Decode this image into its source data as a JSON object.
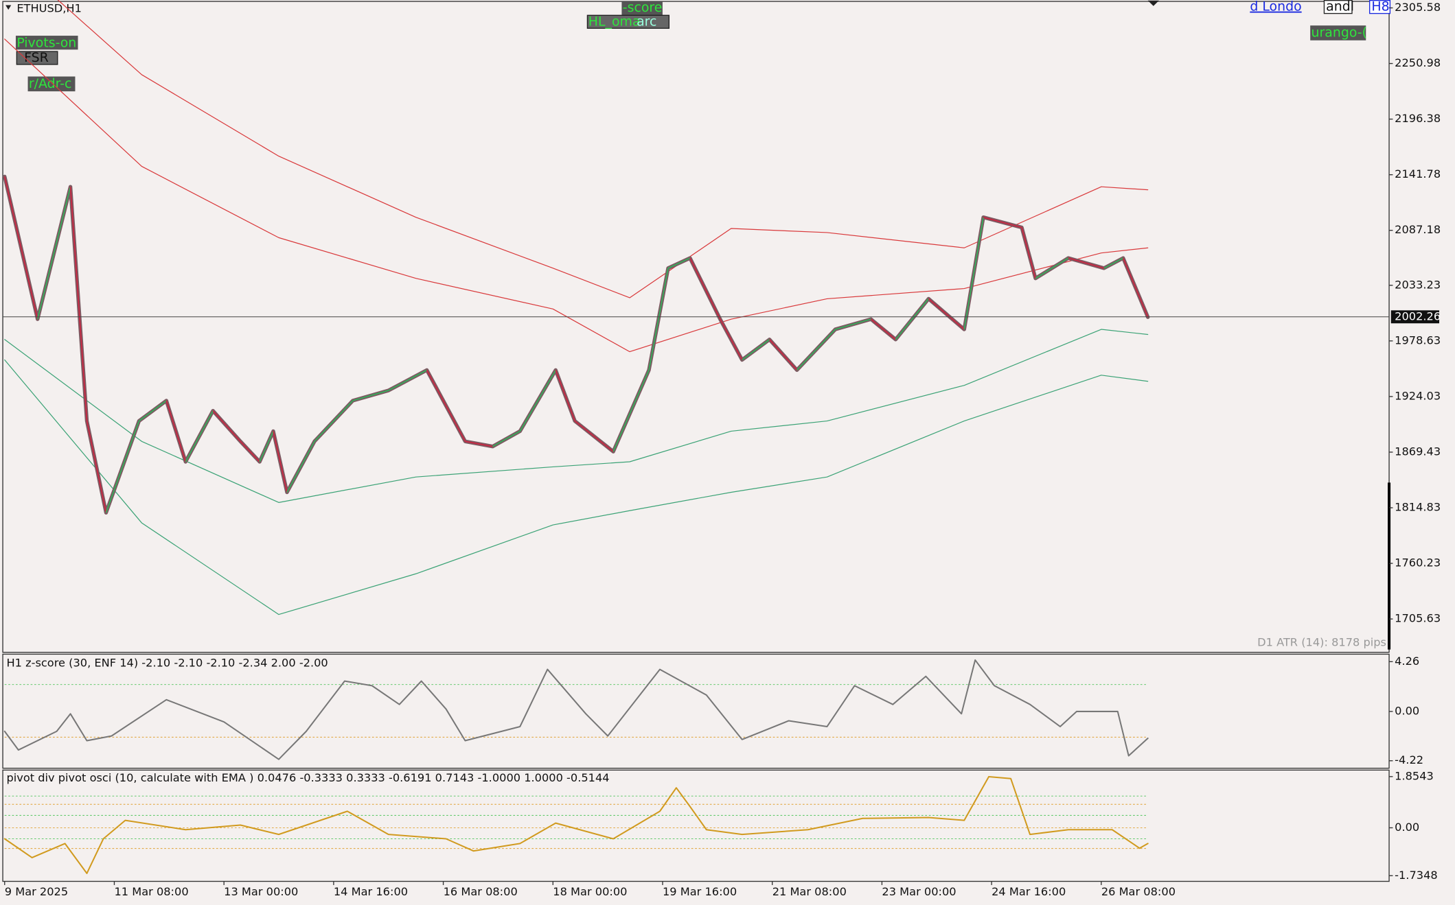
{
  "symbol": "ETHUSD,H1",
  "buttons": [
    "Pivots-on",
    "FSR",
    "r/Adr-c",
    "-score",
    "HL_oma",
    "arc",
    "d Londo",
    "andl",
    "H8",
    "urango-("
  ],
  "main": {
    "type": "line",
    "xlim": [
      0,
      505
    ],
    "xticks": [
      {
        "value": 0,
        "label": "9 Mar 2025"
      },
      {
        "value": 40,
        "label": "11 Mar 08:00"
      },
      {
        "value": 80,
        "label": "13 Mar 00:00"
      },
      {
        "value": 120,
        "label": "14 Mar 16:00"
      },
      {
        "value": 160,
        "label": "16 Mar 08:00"
      },
      {
        "value": 200,
        "label": "18 Mar 00:00"
      },
      {
        "value": 240,
        "label": "19 Mar 16:00"
      },
      {
        "value": 280,
        "label": "21 Mar 08:00"
      },
      {
        "value": 320,
        "label": "23 Mar 00:00"
      },
      {
        "value": 360,
        "label": "24 Mar 16:00"
      },
      {
        "value": 400,
        "label": "26 Mar 08:00"
      }
    ],
    "ylim": [
      1672.9,
      2311.94
    ],
    "yticks": [
      2305.58,
      2250.98,
      2196.38,
      2141.78,
      2087.18,
      2033.23,
      1978.63,
      1924.03,
      1869.43,
      1814.83,
      1760.23,
      1705.63
    ],
    "current_price": 2002.26,
    "x": [
      0,
      12,
      24,
      30,
      37,
      49,
      59,
      66,
      76,
      86,
      93,
      98,
      103,
      113,
      127,
      140,
      154,
      168,
      178,
      188,
      201,
      208,
      222,
      235,
      242,
      250,
      261,
      269,
      279,
      289,
      303,
      316,
      325,
      337,
      350,
      357,
      371,
      376,
      388,
      401,
      408,
      417
    ],
    "series": [
      {
        "color": "#7d5a62",
        "values": [
          2140,
          2000,
          2130,
          1900,
          1810,
          1900,
          1920,
          1860,
          1910,
          1880,
          1860,
          1890,
          1830,
          1880,
          1920,
          1930,
          1950,
          1880,
          1875,
          1890,
          1950,
          1900,
          1870,
          1950,
          2050,
          2060,
          2000,
          1960,
          1980,
          1950,
          1990,
          2000,
          1980,
          2020,
          1990,
          2100,
          2090,
          2040,
          2060,
          2050,
          2060,
          2002
        ]
      }
    ],
    "band_x": [
      0,
      50,
      100,
      150,
      200,
      228,
      265,
      300,
      350,
      400,
      417
    ],
    "bands": [
      {
        "color": "#d9383a",
        "values": [
          2360,
          2240,
          2160,
          2100,
          2050,
          2021,
          2089,
          2085,
          2070,
          2130,
          2127
        ]
      },
      {
        "color": "#d9383a",
        "values": [
          2275,
          2150,
          2080,
          2040,
          2010,
          1968,
          2000,
          2020,
          2030,
          2065,
          2070
        ]
      },
      {
        "color": "#3aa275",
        "values": [
          1980,
          1880,
          1820,
          1845,
          1855,
          1860,
          1890,
          1900,
          1935,
          1990,
          1985
        ]
      },
      {
        "color": "#3aa275",
        "values": [
          1960,
          1800,
          1710,
          1750,
          1798,
          1812,
          1830,
          1845,
          1900,
          1945,
          1939
        ]
      }
    ],
    "atr": "D1 ATR (14): 8178 pips"
  },
  "zscore": {
    "type": "line",
    "title": "H1 z-score (30,  ENF  14) -2.10 -2.10 -2.10 -2.34 2.00 -2.00",
    "ylim": [
      -4.86,
      4.9
    ],
    "yticks": [
      4.26,
      {
        "value": 0,
        "label": "0.00"
      },
      -4.22
    ],
    "levels": [
      2.3,
      -2.2
    ],
    "x": [
      0,
      5,
      19,
      24,
      30,
      39,
      59,
      80,
      100,
      110,
      124,
      134,
      144,
      152,
      161,
      168,
      188,
      198,
      212,
      220,
      239,
      256,
      269,
      286,
      300,
      310,
      324,
      336,
      349,
      354,
      361,
      374,
      385,
      391,
      406,
      410,
      417
    ],
    "color": "#777777",
    "values": [
      -1.7,
      -3.3,
      -1.7,
      -0.2,
      -2.5,
      -2.1,
      1.0,
      -0.9,
      -4.1,
      -1.7,
      2.6,
      2.2,
      0.6,
      2.6,
      0.2,
      -2.5,
      -1.3,
      3.6,
      -0.2,
      -2.1,
      3.6,
      1.4,
      -2.4,
      -0.8,
      -1.3,
      2.2,
      0.6,
      3.0,
      -0.2,
      4.4,
      2.2,
      0.6,
      -1.3,
      0,
      0,
      -3.8,
      -2.3
    ]
  },
  "osci": {
    "type": "line",
    "title": "pivot div pivot osci (10, calculate with EMA ) 0.0476 -0.3333 0.3333 -0.6191 0.7143 -1.0000 1.0000 -0.5144",
    "ylim": [
      -1.94,
      2.09
    ],
    "yticks": [
      1.8543,
      {
        "value": 0,
        "label": "0.00"
      },
      -1.7348
    ],
    "levels": [
      1.15,
      0.85,
      0.45,
      0.0,
      -0.4,
      -0.75
    ],
    "x": [
      0,
      10,
      22,
      30,
      36,
      44,
      66,
      86,
      100,
      125,
      140,
      161,
      171,
      188,
      201,
      222,
      239,
      245,
      250,
      256,
      269,
      293,
      313,
      337,
      350,
      359,
      367,
      374,
      388,
      404,
      414,
      417
    ],
    "color": "#d19a1e",
    "values": [
      -0.4,
      -1.08,
      -0.57,
      -1.65,
      -0.4,
      0.27,
      -0.07,
      0.1,
      -0.24,
      0.6,
      -0.24,
      -0.4,
      -0.84,
      -0.57,
      0.17,
      -0.4,
      0.6,
      1.45,
      0.77,
      -0.07,
      -0.24,
      -0.07,
      0.34,
      0.37,
      0.27,
      1.85,
      1.78,
      -0.24,
      -0.07,
      -0.07,
      -0.74,
      -0.57
    ]
  }
}
